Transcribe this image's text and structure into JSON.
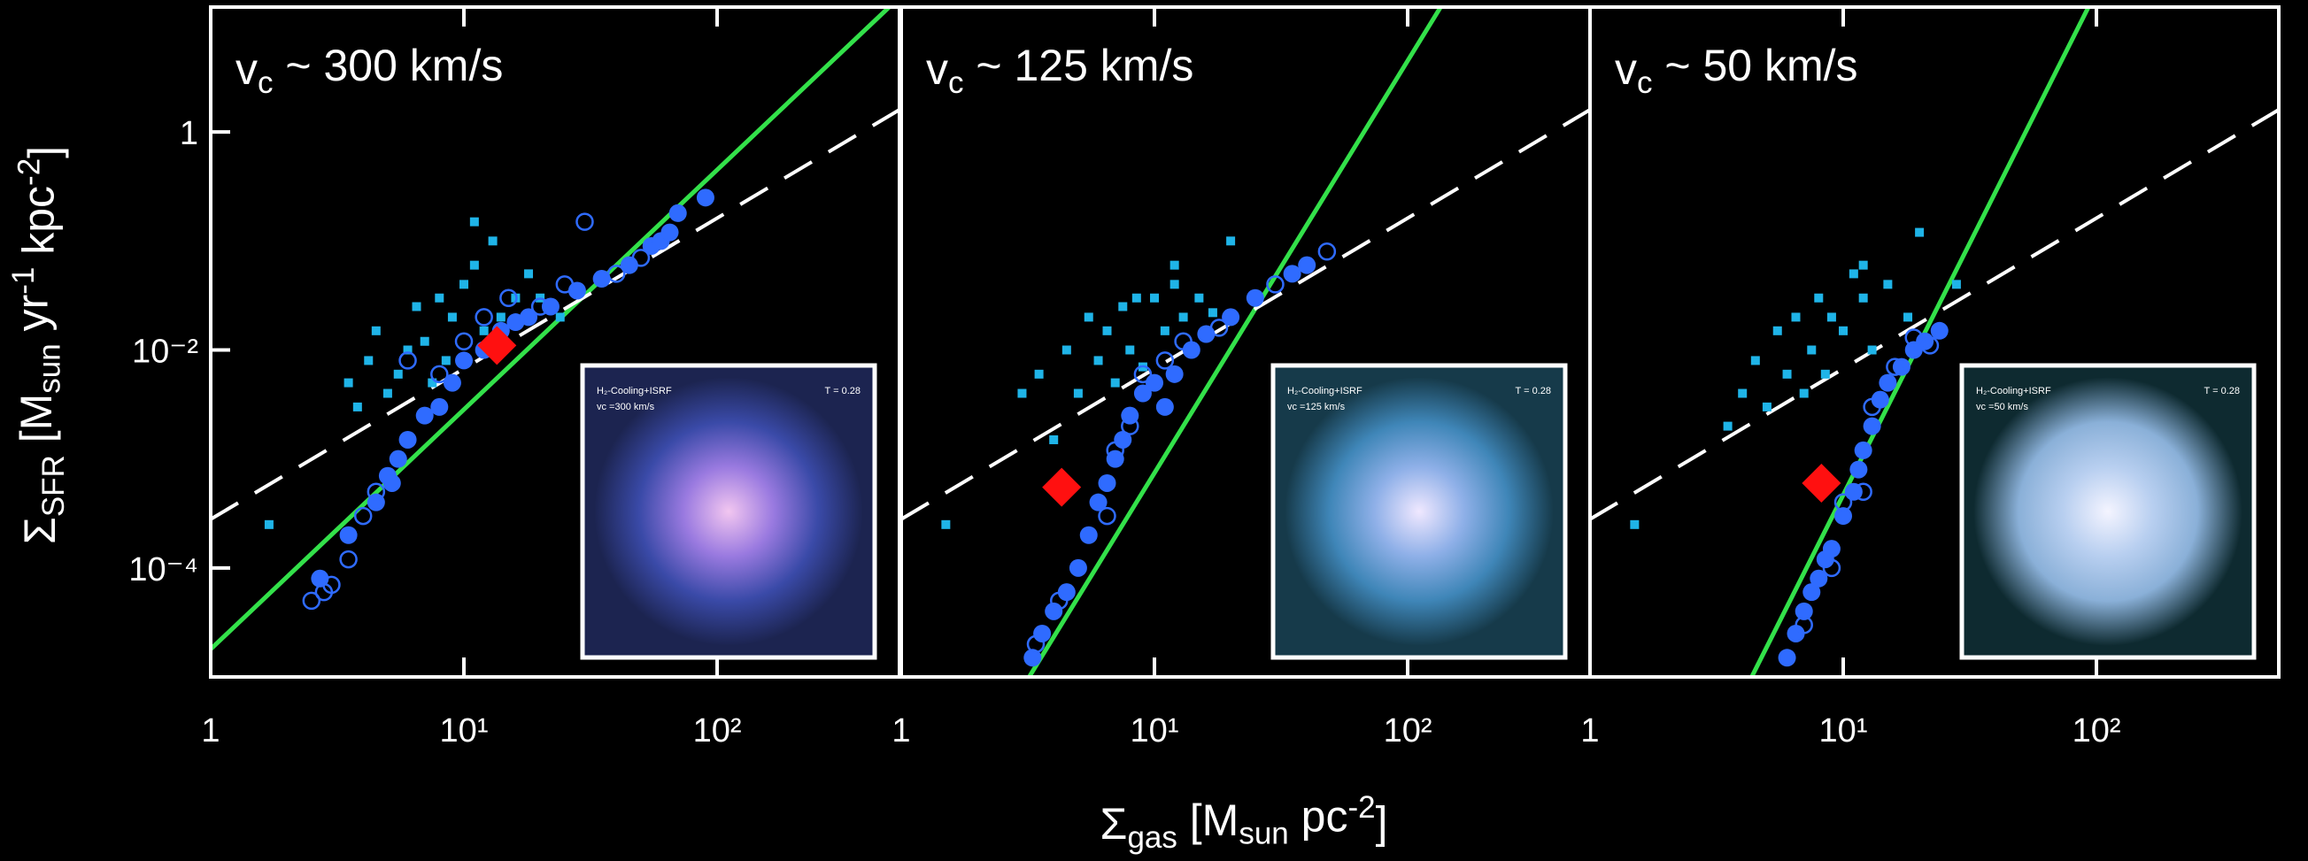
{
  "figure": {
    "ylabel": [
      {
        "text": "Σ"
      },
      {
        "text": "SFR",
        "shift": "sub"
      },
      {
        "text": " [M"
      },
      {
        "text": "sun",
        "shift": "sub"
      },
      {
        "text": " yr"
      },
      {
        "text": "-1",
        "shift": "sup"
      },
      {
        "text": " kpc"
      },
      {
        "text": "-2",
        "shift": "sup"
      },
      {
        "text": "]"
      }
    ],
    "xlabel": [
      {
        "text": "Σ"
      },
      {
        "text": "gas",
        "shift": "sub"
      },
      {
        "text": " [M"
      },
      {
        "text": "sun",
        "shift": "sub"
      },
      {
        "text": " pc"
      },
      {
        "text": "-2",
        "shift": "sup"
      },
      {
        "text": "]"
      }
    ]
  },
  "chart_data": [
    {
      "type": "scatter",
      "log_x": true,
      "log_y": true,
      "title": [
        {
          "text": "v"
        },
        {
          "text": "c",
          "shift": "sub"
        },
        {
          "text": " ~ 300 km/s"
        }
      ],
      "xlim": [
        1,
        525
      ],
      "ylim": [
        1e-05,
        14
      ],
      "xticks": [
        1,
        {
          "value": 10,
          "label": "10¹"
        },
        {
          "value": 100,
          "label": "10²"
        }
      ],
      "yticks": [
        1,
        {
          "value": 0.01,
          "label": "10⁻²"
        },
        {
          "value": 0.0001,
          "label": "10⁻⁴"
        }
      ],
      "inset": {
        "label": "H₂-Cooling+ISRF",
        "time": "T = 0.28",
        "vc": "vc =300 km/s",
        "colors": [
          "#f2c6f0",
          "#9a7ae0",
          "#3a4aa8",
          "#1c2450"
        ]
      },
      "series": [
        {
          "marker": "line",
          "color": "#33e14a",
          "x": [
            1,
            478
          ],
          "values": [
            1.8e-05,
            14
          ]
        },
        {
          "marker": "dashed",
          "color": "#ffffff",
          "x": [
            1,
            525
          ],
          "values": [
            0.00028,
            1.6
          ]
        },
        {
          "marker": "square",
          "color": "#1fb4e8",
          "x": [
            1.7,
            3.5,
            3.8,
            4.2,
            4.5,
            5,
            5.5,
            6,
            6.5,
            7,
            7.5,
            8,
            8.5,
            9,
            10,
            11,
            12,
            13,
            14,
            16,
            18,
            20,
            24,
            11
          ],
          "values": [
            0.00025,
            0.005,
            0.003,
            0.008,
            0.015,
            0.004,
            0.006,
            0.01,
            0.025,
            0.012,
            0.005,
            0.03,
            0.008,
            0.02,
            0.04,
            0.06,
            0.015,
            0.1,
            0.02,
            0.03,
            0.05,
            0.03,
            0.02,
            0.15
          ]
        },
        {
          "marker": "circle",
          "color": "#2f6bff",
          "x": [
            2.7,
            3.5,
            4.5,
            5,
            5.2,
            5.5,
            6,
            7,
            8,
            9,
            10,
            12,
            14,
            16,
            18,
            22,
            28,
            35,
            45,
            55,
            60,
            65,
            70,
            90
          ],
          "values": [
            8e-05,
            0.0002,
            0.0004,
            0.0007,
            0.0006,
            0.001,
            0.0015,
            0.0025,
            0.003,
            0.005,
            0.008,
            0.01,
            0.015,
            0.018,
            0.02,
            0.025,
            0.035,
            0.045,
            0.06,
            0.09,
            0.1,
            0.12,
            0.18,
            0.25
          ]
        },
        {
          "marker": "open-circle",
          "color": "#2f6bff",
          "x": [
            2.5,
            2.8,
            3,
            3.5,
            4,
            4.5,
            6,
            8,
            10,
            12,
            15,
            20,
            25,
            30,
            40,
            50
          ],
          "values": [
            5e-05,
            6e-05,
            7e-05,
            0.00012,
            0.0003,
            0.0005,
            0.008,
            0.006,
            0.012,
            0.02,
            0.03,
            0.025,
            0.04,
            0.15,
            0.05,
            0.07
          ]
        },
        {
          "marker": "diamond",
          "color": "#ff1010",
          "x": [
            13.5
          ],
          "values": [
            0.011
          ]
        }
      ]
    },
    {
      "type": "scatter",
      "log_x": true,
      "log_y": true,
      "title": [
        {
          "text": "v"
        },
        {
          "text": "c",
          "shift": "sub"
        },
        {
          "text": " ~ 125 km/s"
        }
      ],
      "xlim": [
        1,
        525
      ],
      "ylim": [
        1e-05,
        14
      ],
      "xticks": [
        1,
        {
          "value": 10,
          "label": "10¹"
        },
        {
          "value": 100,
          "label": "10²"
        }
      ],
      "inset": {
        "label": "H₂-Cooling+ISRF",
        "time": "T = 0.28",
        "vc": "vc =125 km/s",
        "colors": [
          "#f0e8ff",
          "#8fb0e8",
          "#3f86b8",
          "#163a4a"
        ]
      },
      "series": [
        {
          "marker": "line",
          "color": "#33e14a",
          "x": [
            3.2,
            135
          ],
          "values": [
            1e-05,
            14
          ]
        },
        {
          "marker": "dashed",
          "color": "#ffffff",
          "x": [
            1,
            525
          ],
          "values": [
            0.00028,
            1.6
          ]
        },
        {
          "marker": "square",
          "color": "#1fb4e8",
          "x": [
            1.5,
            3,
            3.5,
            4,
            4.5,
            5,
            5.5,
            6,
            6.5,
            7,
            7.5,
            8,
            8.5,
            9,
            10,
            11,
            12,
            13,
            15,
            17,
            20,
            12
          ],
          "values": [
            0.00025,
            0.004,
            0.006,
            0.0015,
            0.01,
            0.004,
            0.02,
            0.008,
            0.015,
            0.005,
            0.025,
            0.01,
            0.03,
            0.007,
            0.03,
            0.015,
            0.04,
            0.02,
            0.03,
            0.022,
            0.1,
            0.06
          ]
        },
        {
          "marker": "circle",
          "color": "#2f6bff",
          "x": [
            3.3,
            3.6,
            4,
            4.5,
            5,
            5.5,
            6,
            6.5,
            7,
            7.5,
            8,
            9,
            10,
            11,
            12,
            14,
            16,
            20,
            25,
            35,
            40
          ],
          "values": [
            1.5e-05,
            2.5e-05,
            4e-05,
            6e-05,
            0.0001,
            0.0002,
            0.0004,
            0.0006,
            0.001,
            0.0015,
            0.0025,
            0.004,
            0.005,
            0.003,
            0.006,
            0.01,
            0.014,
            0.02,
            0.03,
            0.05,
            0.06
          ]
        },
        {
          "marker": "open-circle",
          "color": "#2f6bff",
          "x": [
            3.4,
            4.2,
            6.5,
            7,
            8,
            9,
            11,
            13,
            18,
            30,
            48
          ],
          "values": [
            2e-05,
            5e-05,
            0.0003,
            0.0012,
            0.002,
            0.006,
            0.008,
            0.012,
            0.016,
            0.04,
            0.08
          ]
        },
        {
          "marker": "diamond",
          "color": "#ff1010",
          "x": [
            4.3
          ],
          "values": [
            0.00055
          ]
        }
      ]
    },
    {
      "type": "scatter",
      "log_x": true,
      "log_y": true,
      "title": [
        {
          "text": "v"
        },
        {
          "text": "c",
          "shift": "sub"
        },
        {
          "text": " ~ 50 km/s"
        }
      ],
      "xlim": [
        1,
        525
      ],
      "ylim": [
        1e-05,
        14
      ],
      "xticks": [
        1,
        {
          "value": 10,
          "label": "10¹"
        },
        {
          "value": 100,
          "label": "10²"
        }
      ],
      "inset": {
        "label": "H₂-Cooling+ISRF",
        "time": "T = 0.28",
        "vc": "vc =50 km/s",
        "colors": [
          "#f4f4ff",
          "#b8cff0",
          "#8ab0d8",
          "#0e2a30"
        ]
      },
      "series": [
        {
          "marker": "line",
          "color": "#33e14a",
          "x": [
            4.35,
            93
          ],
          "values": [
            1e-05,
            14
          ]
        },
        {
          "marker": "dashed",
          "color": "#ffffff",
          "x": [
            1,
            525
          ],
          "values": [
            0.00028,
            1.6
          ]
        },
        {
          "marker": "square",
          "color": "#1fb4e8",
          "x": [
            1.5,
            3.5,
            4,
            4.5,
            5,
            5.5,
            6,
            6.5,
            7,
            7.5,
            8,
            8.5,
            9,
            10,
            11,
            12,
            13,
            15,
            18,
            20,
            28,
            12
          ],
          "values": [
            0.00025,
            0.002,
            0.004,
            0.008,
            0.003,
            0.015,
            0.006,
            0.02,
            0.004,
            0.01,
            0.03,
            0.006,
            0.02,
            0.015,
            0.05,
            0.03,
            0.01,
            0.04,
            0.02,
            0.12,
            0.04,
            0.06
          ]
        },
        {
          "marker": "circle",
          "color": "#2f6bff",
          "x": [
            6,
            6.5,
            7,
            7.5,
            8,
            8.5,
            9,
            10,
            11,
            11.5,
            12,
            13,
            14,
            15,
            17,
            19,
            21,
            24
          ],
          "values": [
            1.5e-05,
            2.5e-05,
            4e-05,
            6e-05,
            8e-05,
            0.00012,
            0.00015,
            0.0003,
            0.0005,
            0.0008,
            0.0012,
            0.002,
            0.0035,
            0.005,
            0.007,
            0.01,
            0.012,
            0.015
          ]
        },
        {
          "marker": "open-circle",
          "color": "#2f6bff",
          "x": [
            5,
            7,
            9,
            10,
            12,
            13,
            16,
            19,
            22
          ],
          "values": [
            8e-06,
            3e-05,
            0.0001,
            0.0004,
            0.0005,
            0.003,
            0.007,
            0.013,
            0.011
          ]
        },
        {
          "marker": "diamond",
          "color": "#ff1010",
          "x": [
            8.2
          ],
          "values": [
            0.0006
          ]
        }
      ]
    }
  ]
}
